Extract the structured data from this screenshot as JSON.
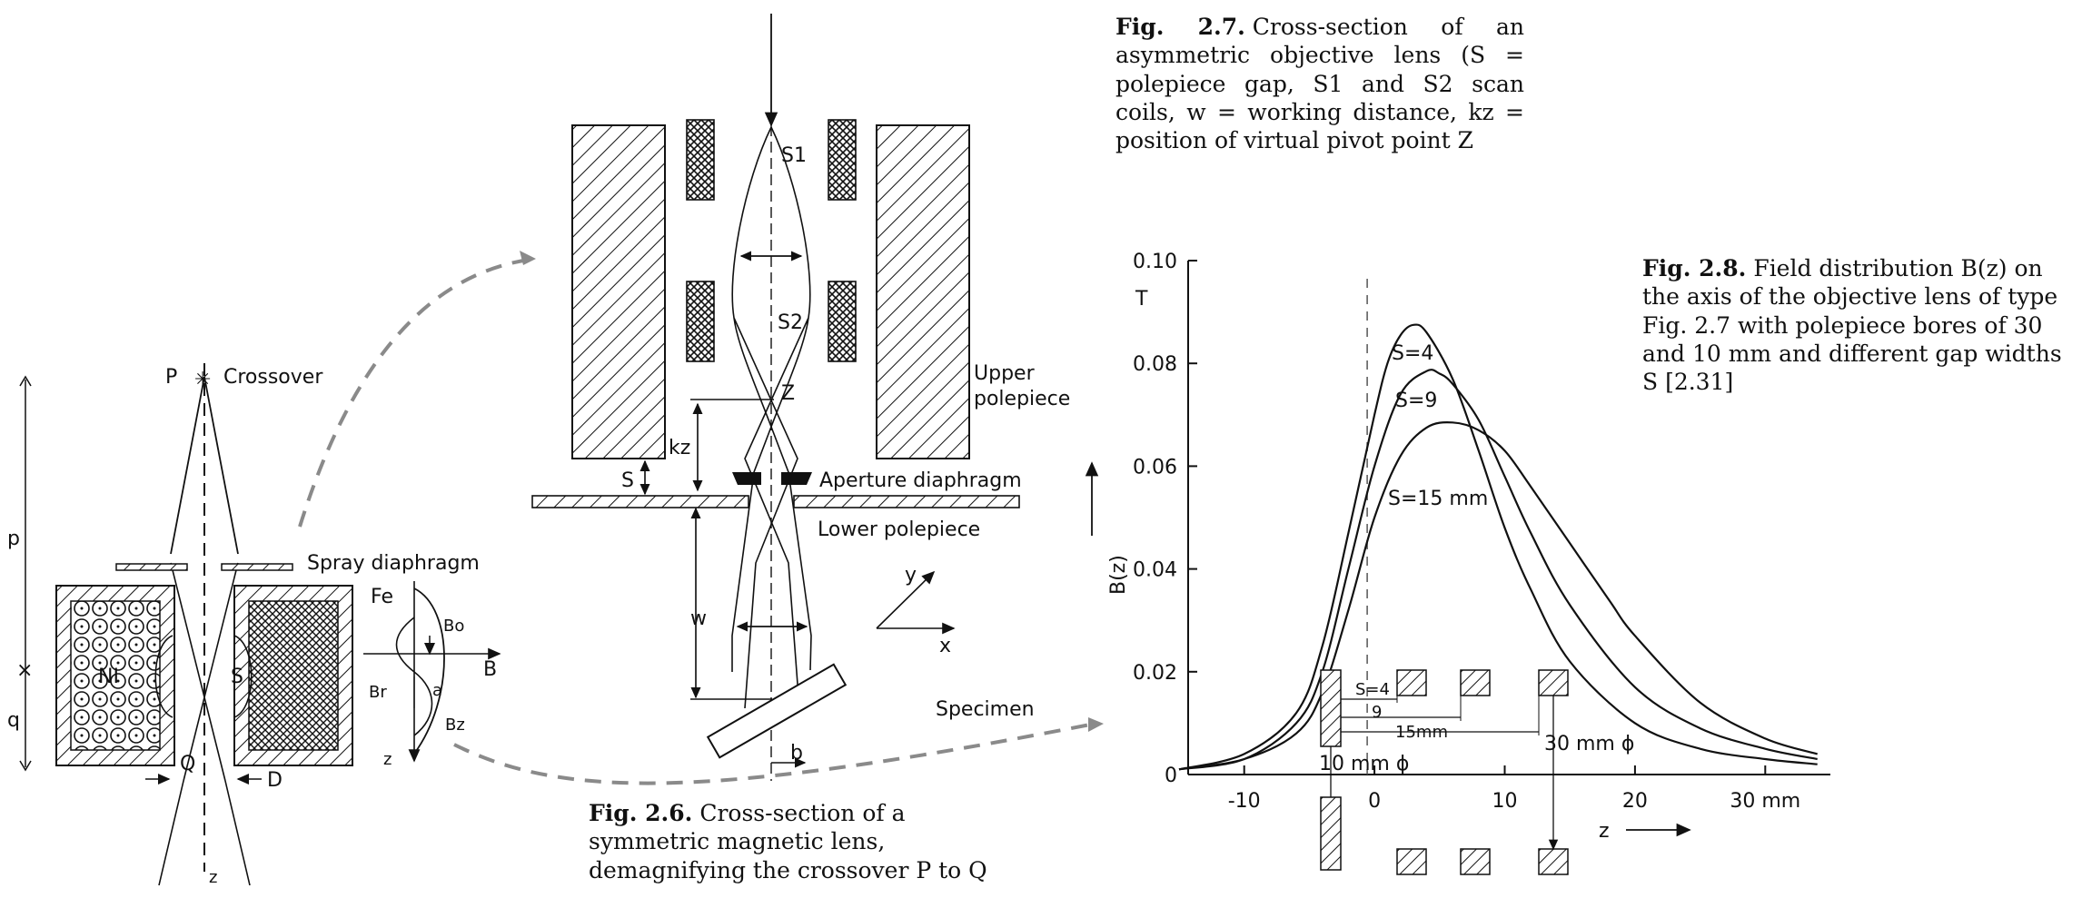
{
  "fig26": {
    "caption_label": "Fig. 2.6.",
    "caption_text": "Cross-section of a symmetric magnetic lens, demagnifying the crossover P to Q",
    "labels": {
      "P": "P",
      "crossover": "Crossover",
      "p": "p",
      "q": "q",
      "spray": "Spray diaphragm",
      "fe": "Fe",
      "ni": "NI",
      "s": "S",
      "Q": "Q",
      "D": "D",
      "z": "z",
      "bo": "Bo",
      "b": "B",
      "a": "a",
      "br": "Br",
      "bz": "Bz",
      "z2": "z"
    }
  },
  "fig27": {
    "caption_label": "Fig. 2.7.",
    "caption_text": "Cross-section of an asymmetric objective lens (S = polepiece gap, S1 and S2 scan coils, w = working distance, kz = position of virtual pivot point Z",
    "labels": {
      "s1": "S1",
      "s2": "S2",
      "z": "Z",
      "kz": "kz",
      "s": "S",
      "upper": "Upper",
      "polepiece": "polepiece",
      "aperture": "Aperture diaphragm",
      "lower": "Lower polepiece",
      "w": "w",
      "y": "y",
      "x": "x",
      "specimen": "Specimen",
      "b": "b"
    }
  },
  "fig28": {
    "caption_label": "Fig. 2.8.",
    "caption_text": "Field distribution B(z) on the axis of the objective lens of type Fig. 2.7 with polepiece bores of 30 and 10 mm and different gap widths S [2.31]",
    "insets": {
      "s4": "S=4",
      "nine": "9",
      "fifteen": "15mm",
      "bore10": "10 mm ϕ",
      "bore30": "30 mm ϕ"
    }
  },
  "chart_data": {
    "type": "line",
    "title": "",
    "xlabel": "z",
    "x_unit": "mm",
    "ylabel": "B(z)",
    "y_unit": "T",
    "xlim": [
      -15,
      35
    ],
    "ylim": [
      0,
      0.1
    ],
    "x_ticks": [
      "-10",
      "0",
      "10",
      "20",
      "30 mm"
    ],
    "y_ticks": [
      "0",
      "0.02",
      "0.04",
      "0.06",
      "0.08",
      "0.10"
    ],
    "grid": false,
    "series": [
      {
        "name": "S=4",
        "x": [
          -15,
          -10,
          -6,
          -4,
          -2,
          0,
          1,
          2,
          3,
          4,
          6,
          8,
          10,
          12,
          15,
          20,
          25,
          30,
          34
        ],
        "y": [
          0.001,
          0.004,
          0.012,
          0.025,
          0.047,
          0.07,
          0.08,
          0.0855,
          0.0875,
          0.086,
          0.077,
          0.063,
          0.048,
          0.036,
          0.022,
          0.01,
          0.005,
          0.003,
          0.002
        ]
      },
      {
        "name": "S=9",
        "x": [
          -15,
          -10,
          -6,
          -4,
          -2,
          0,
          2,
          4,
          5,
          6,
          8,
          10,
          12,
          15,
          20,
          25,
          30,
          34
        ],
        "y": [
          0.001,
          0.003,
          0.01,
          0.02,
          0.04,
          0.06,
          0.074,
          0.0785,
          0.078,
          0.076,
          0.069,
          0.058,
          0.047,
          0.033,
          0.017,
          0.009,
          0.005,
          0.003
        ]
      },
      {
        "name": "S=15 mm",
        "x": [
          -15,
          -10,
          -6,
          -4,
          -2,
          0,
          2,
          4,
          6,
          8,
          10,
          12,
          15,
          18,
          20,
          25,
          30,
          34
        ],
        "y": [
          0.001,
          0.003,
          0.008,
          0.016,
          0.032,
          0.05,
          0.062,
          0.0675,
          0.0685,
          0.067,
          0.063,
          0.056,
          0.045,
          0.034,
          0.027,
          0.014,
          0.007,
          0.004
        ]
      }
    ]
  }
}
